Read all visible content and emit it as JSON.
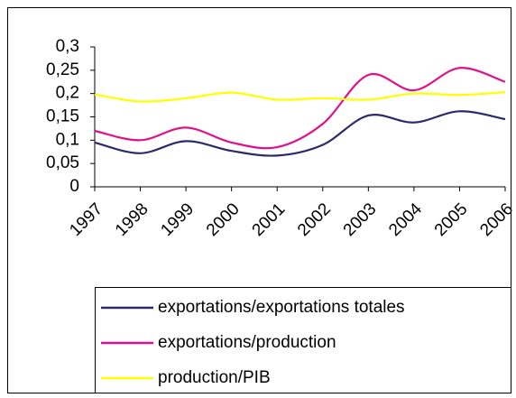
{
  "chart_data": {
    "type": "line",
    "categories": [
      "1997",
      "1998",
      "1999",
      "2000",
      "2001",
      "2002",
      "2003",
      "2004",
      "2005",
      "2006"
    ],
    "series": [
      {
        "name": "exportations/exportations totales",
        "color": "#2b2b6b",
        "values": [
          0.095,
          0.072,
          0.098,
          0.077,
          0.067,
          0.09,
          0.153,
          0.138,
          0.162,
          0.145
        ]
      },
      {
        "name": "exportations/production",
        "color": "#e0108c",
        "values": [
          0.12,
          0.1,
          0.127,
          0.095,
          0.085,
          0.135,
          0.24,
          0.207,
          0.255,
          0.225
        ]
      },
      {
        "name": "production/PIB",
        "color": "#ffff00",
        "values": [
          0.198,
          0.183,
          0.19,
          0.202,
          0.187,
          0.19,
          0.187,
          0.2,
          0.197,
          0.203
        ]
      }
    ],
    "ylim": [
      0,
      0.3
    ],
    "yticks": [
      0,
      {
        "value": 0.05,
        "label": "0,05"
      },
      {
        "value": 0.1,
        "label": "0,1"
      },
      {
        "value": 0.15,
        "label": "0,15"
      },
      {
        "value": 0.2,
        "label": "0,2"
      },
      {
        "value": 0.25,
        "label": "0,25"
      },
      {
        "value": 0.3,
        "label": "0,3"
      }
    ],
    "grid": false,
    "legend": "bottom"
  }
}
